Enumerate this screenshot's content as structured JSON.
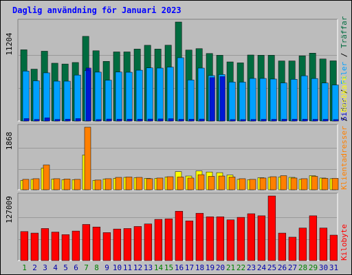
{
  "colors": {
    "background": "#c0c0c0",
    "panel": "#bcbcbc",
    "grid": "#999999",
    "title": "#0000ff",
    "hits": "#006b3f",
    "files": "#00a0ff",
    "pages": "#0000cc",
    "visits": "#ff8000",
    "sites": "#ffff00",
    "kbytes": "#ff0000",
    "weekend_label": "#008000",
    "weekday_label": "#0000aa"
  },
  "chart_data": [
    {
      "type": "bar",
      "title": "Daglig användning för Januari 2023",
      "ymax_label": "11204",
      "ylim": [
        0,
        11204
      ],
      "categories": [
        "1",
        "2",
        "3",
        "4",
        "5",
        "6",
        "7",
        "8",
        "9",
        "10",
        "11",
        "12",
        "13",
        "14",
        "15",
        "16",
        "17",
        "18",
        "19",
        "20",
        "21",
        "22",
        "23",
        "24",
        "25",
        "26",
        "27",
        "28",
        "29",
        "30",
        "31"
      ],
      "weekend_days": [
        "1",
        "7",
        "8",
        "14",
        "15",
        "21",
        "22",
        "28",
        "29"
      ],
      "legend": [
        "Träffar",
        "Filer",
        "Sidor"
      ],
      "series": [
        {
          "name": "Träffar",
          "color_key": "hits",
          "values": [
            8060,
            5870,
            7900,
            6540,
            6450,
            6620,
            9580,
            7950,
            6750,
            7820,
            7820,
            8140,
            8570,
            8140,
            8580,
            11204,
            8030,
            8190,
            7640,
            7440,
            6690,
            6580,
            7470,
            7440,
            7440,
            6800,
            6800,
            7380,
            7680,
            7020,
            6810
          ]
        },
        {
          "name": "Filer",
          "color_key": "files",
          "values": [
            5650,
            4550,
            5450,
            4510,
            4510,
            5200,
            5690,
            5530,
            4620,
            5540,
            5520,
            5750,
            6010,
            5990,
            6100,
            7160,
            4640,
            5990,
            5140,
            5260,
            4410,
            4400,
            4820,
            4820,
            4750,
            4310,
            4720,
            5120,
            4810,
            4300,
            4080
          ]
        },
        {
          "name": "Sidor",
          "color_key": "pages",
          "values": [
            280,
            190,
            360,
            190,
            220,
            280,
            6000,
            170,
            230,
            210,
            220,
            220,
            230,
            240,
            270,
            200,
            210,
            230,
            4920,
            5030,
            170,
            170,
            190,
            200,
            200,
            210,
            210,
            220,
            200,
            200,
            170
          ]
        }
      ]
    },
    {
      "type": "bar",
      "ymax_label": "1868",
      "ylim": [
        0,
        1868
      ],
      "legend": [
        "Klientadresser",
        "Besökare"
      ],
      "series": [
        {
          "name": "Klientadresser",
          "color_key": "visits",
          "values": [
            310,
            330,
            740,
            330,
            320,
            310,
            1868,
            290,
            330,
            370,
            380,
            370,
            330,
            350,
            390,
            380,
            350,
            450,
            400,
            410,
            380,
            330,
            310,
            350,
            390,
            420,
            350,
            330,
            400,
            340,
            340
          ]
        },
        {
          "name": "Besökare",
          "color_key": "sites",
          "values": [
            280,
            310,
            650,
            320,
            300,
            300,
            1040,
            280,
            320,
            340,
            370,
            360,
            340,
            340,
            380,
            540,
            410,
            560,
            530,
            510,
            440,
            310,
            300,
            360,
            370,
            380,
            370,
            310,
            420,
            350,
            330
          ]
        }
      ]
    },
    {
      "type": "bar",
      "ymax_label": "127009",
      "ylim": [
        0,
        127009
      ],
      "legend": [
        "Kilobyte"
      ],
      "series": [
        {
          "name": "Kilobyte",
          "color_key": "kbytes",
          "values": [
            57000,
            54000,
            63000,
            56000,
            51000,
            58000,
            71000,
            66000,
            55000,
            62000,
            63000,
            67000,
            72000,
            81000,
            82000,
            97000,
            78000,
            93000,
            86000,
            86000,
            80000,
            85000,
            92000,
            88000,
            127009,
            54000,
            46000,
            64000,
            88000,
            64000,
            50000
          ]
        }
      ]
    }
  ]
}
